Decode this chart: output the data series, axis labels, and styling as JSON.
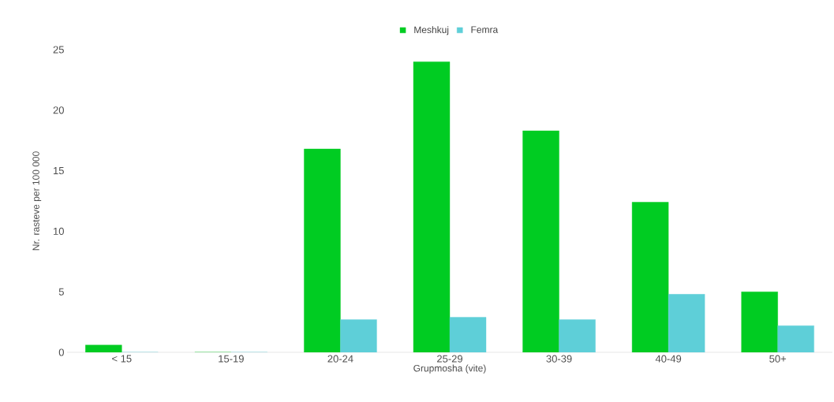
{
  "chart_data": {
    "type": "bar",
    "xlabel": "Grupmosha  (vite)",
    "ylabel": "Nr. rasteve per 100 000",
    "categories": [
      "< 15",
      "15-19",
      "20-24",
      "25-29",
      "30-39",
      "40-49",
      "50+"
    ],
    "series": [
      {
        "name": "Meshkuj",
        "color": "#00cc22",
        "values": [
          0.6,
          0,
          16.8,
          24,
          18.3,
          12.4,
          5.0
        ]
      },
      {
        "name": "Femra",
        "color": "#5ecfd8",
        "values": [
          0,
          0,
          2.7,
          2.9,
          2.7,
          4.8,
          2.2
        ]
      }
    ],
    "ylim": [
      0,
      25
    ],
    "yticks": [
      0,
      5,
      10,
      15,
      20,
      25
    ],
    "legend": "top"
  }
}
